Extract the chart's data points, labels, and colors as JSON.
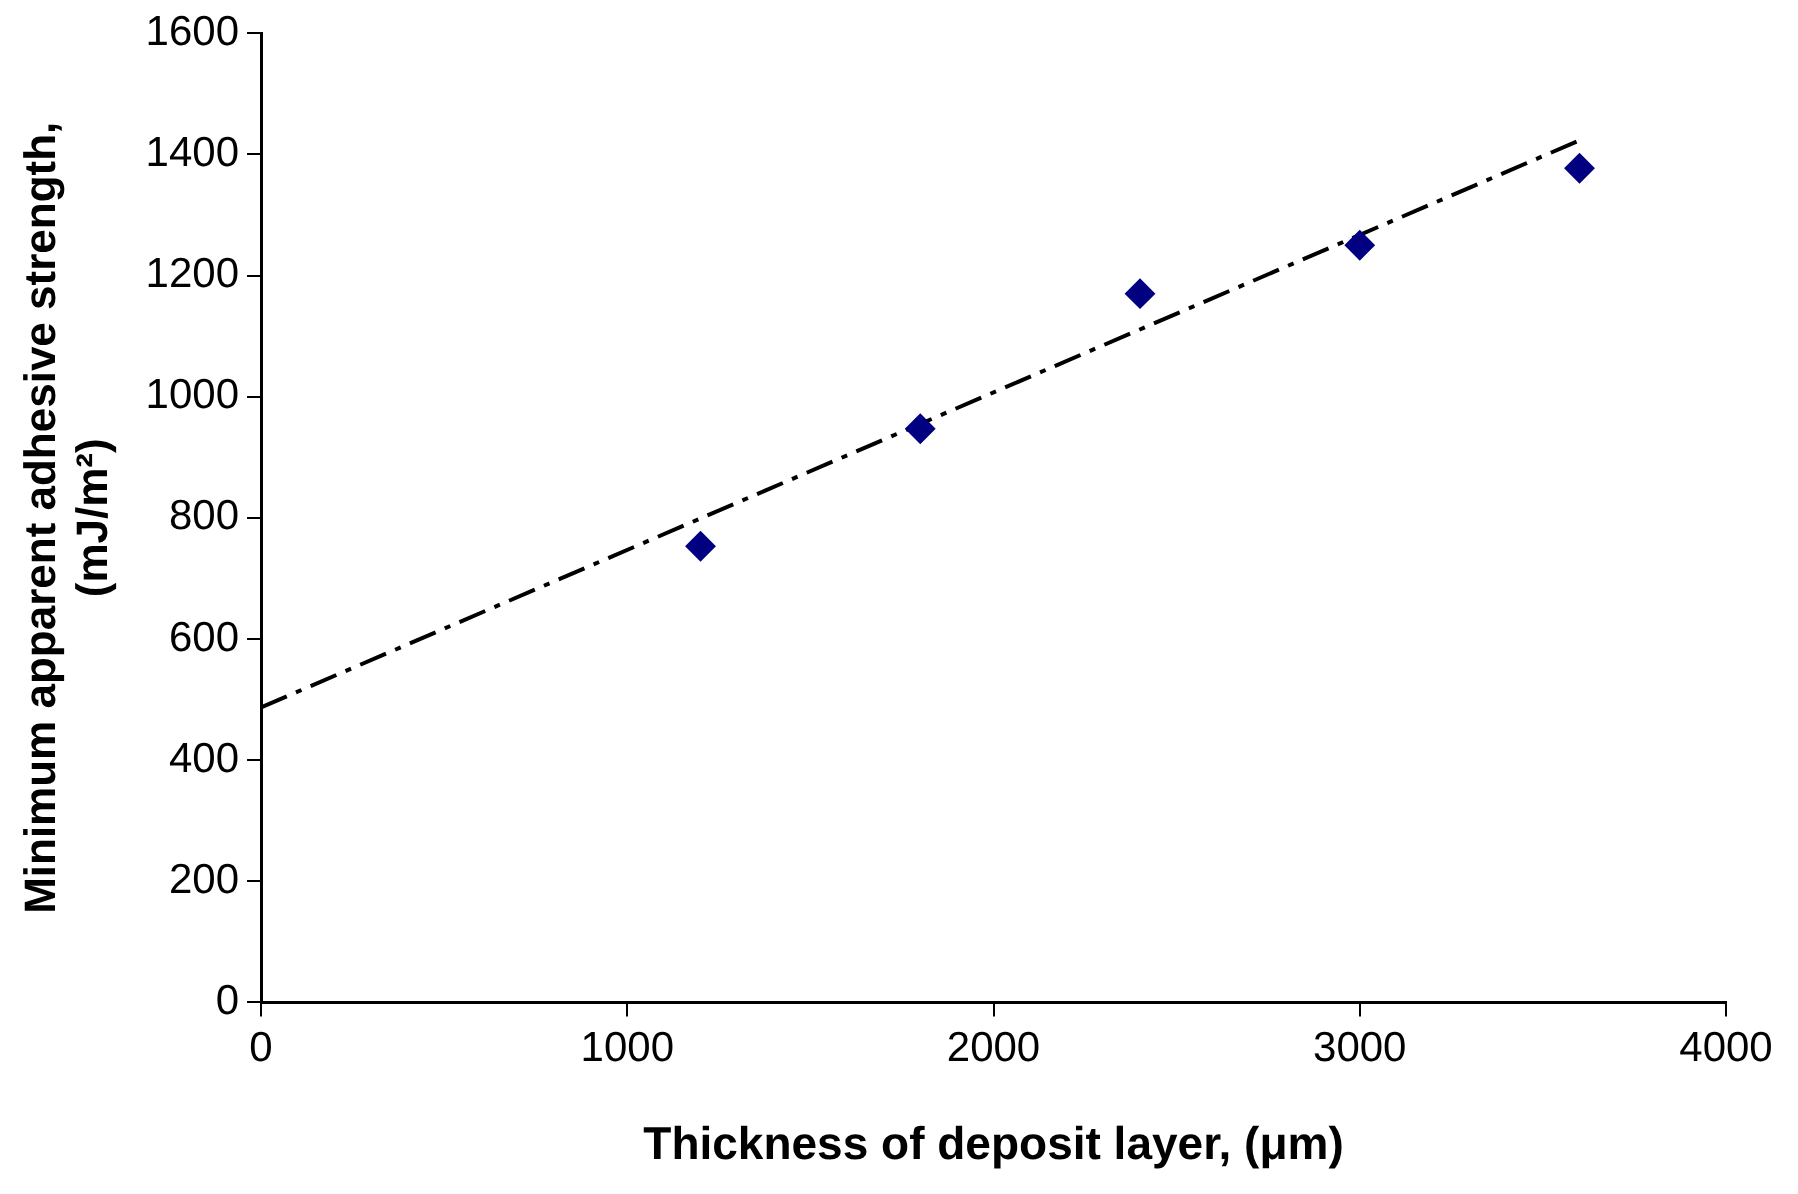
{
  "chart_data": {
    "type": "scatter",
    "xlabel": "Thickness of deposit layer, (μm)",
    "ylabel": "Minimum apparent adhesive strength,\n(mJ/m²)",
    "series": [
      {
        "color": "#000080",
        "marker": "diamond",
        "x": [
          1200,
          1800,
          2400,
          3000,
          3600
        ],
        "values": [
          753,
          947,
          1170,
          1250,
          1377
        ]
      },
      {
        "type": "line",
        "color": "#000000",
        "line_style": "dashed",
        "marker": "none",
        "x": [
          0,
          3600
        ],
        "values": [
          487,
          1423
        ]
      }
    ],
    "xlim": [
      0,
      4000
    ],
    "xticks": [
      0,
      1000,
      2000,
      3000,
      4000
    ],
    "ylim": [
      0,
      1600
    ],
    "yticks": [
      0,
      200,
      400,
      600,
      800,
      1000,
      1200,
      1400,
      1600
    ],
    "grid": false,
    "legend": false
  }
}
